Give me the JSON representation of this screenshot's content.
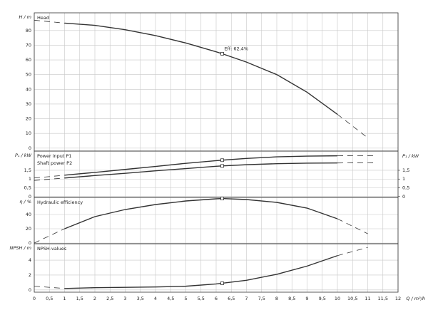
{
  "chart_data": [
    {
      "type": "line",
      "ylabel": "H / m",
      "ylim": [
        -2,
        92
      ],
      "yticks": [
        0,
        10,
        20,
        30,
        40,
        50,
        60,
        70,
        80
      ],
      "grid": true,
      "annotation": "Eff: 62,4%",
      "series": [
        {
          "name": "Head",
          "color": "#333333",
          "style": "solid",
          "marker_x": 6.2,
          "x": [
            1,
            2,
            3,
            4,
            5,
            6,
            6.2,
            7,
            8,
            9,
            10
          ],
          "values": [
            85,
            83.5,
            80.5,
            76.5,
            71.5,
            65.5,
            64.2,
            58.5,
            50,
            38,
            23
          ]
        },
        {
          "color": "#333333",
          "style": "dashed",
          "x": [
            0,
            1
          ],
          "values": [
            87,
            85
          ]
        },
        {
          "color": "#333333",
          "style": "dashed",
          "x": [
            10,
            11
          ],
          "values": [
            23,
            7
          ]
        }
      ]
    },
    {
      "type": "line",
      "ylabel": "P₁ / kW",
      "ylim": [
        -0.05,
        2.6
      ],
      "yticks": [
        0,
        {
          "value": 0.5,
          "label": "0,5"
        },
        1,
        {
          "value": 1.5,
          "label": "1,5"
        }
      ],
      "grid": true,
      "y2label": "P₁ / kW",
      "y2lim": [
        -0.05,
        2.6
      ],
      "y2ticks": [
        0,
        {
          "value": 0.5,
          "label": "0,5"
        },
        1,
        {
          "value": 1.5,
          "label": "1,5"
        }
      ],
      "series": [
        {
          "name": "Power input P1",
          "color": "#333333",
          "style": "solid",
          "marker_x": 6.2,
          "x": [
            1,
            2,
            3,
            4,
            5,
            6,
            6.2,
            7,
            8,
            9,
            10
          ],
          "values": [
            1.22,
            1.38,
            1.55,
            1.72,
            1.9,
            2.05,
            2.08,
            2.18,
            2.27,
            2.31,
            2.33
          ]
        },
        {
          "name": "Shaft power P2",
          "color": "#333333",
          "style": "solid",
          "marker_x": 6.2,
          "x": [
            1,
            2,
            3,
            4,
            5,
            6,
            6.2,
            7,
            8,
            9,
            10
          ],
          "values": [
            1.06,
            1.2,
            1.33,
            1.47,
            1.6,
            1.73,
            1.75,
            1.82,
            1.88,
            1.91,
            1.92
          ]
        },
        {
          "color": "#333333",
          "style": "dashed",
          "x": [
            0,
            1
          ],
          "values": [
            1.06,
            1.22
          ]
        },
        {
          "color": "#333333",
          "style": "dashed",
          "x": [
            10,
            11.3
          ],
          "values": [
            2.33,
            2.34
          ]
        },
        {
          "color": "#333333",
          "style": "dashed",
          "x": [
            0,
            1
          ],
          "values": [
            0.92,
            1.06
          ]
        },
        {
          "color": "#333333",
          "style": "dashed",
          "x": [
            10,
            11.3
          ],
          "values": [
            1.92,
            1.93
          ]
        }
      ]
    },
    {
      "type": "line",
      "ylabel": "η / %",
      "ylim": [
        -1,
        64
      ],
      "yticks": [
        0,
        20,
        40
      ],
      "grid": true,
      "series": [
        {
          "name": "Hydraulic efficiency",
          "color": "#333333",
          "style": "solid",
          "marker_x": 6.2,
          "x": [
            1,
            2,
            3,
            4,
            5,
            6,
            6.2,
            7,
            8,
            9,
            10
          ],
          "values": [
            20,
            37,
            47,
            54,
            59,
            62,
            62.4,
            61,
            57,
            49,
            34
          ]
        },
        {
          "color": "#333333",
          "style": "dashed",
          "x": [
            0,
            1
          ],
          "values": [
            0,
            20
          ]
        },
        {
          "color": "#333333",
          "style": "dashed",
          "x": [
            10,
            11
          ],
          "values": [
            34,
            13
          ]
        }
      ]
    },
    {
      "type": "line",
      "ylabel": "NPSH / m",
      "ylim": [
        -0.3,
        6.2
      ],
      "yticks": [
        0,
        2,
        4
      ],
      "grid": true,
      "xlabel": "Q / m³/h",
      "xlim": [
        0,
        12
      ],
      "xticks": [
        0,
        {
          "value": 0.5,
          "label": "0,5"
        },
        1,
        {
          "value": 1.5,
          "label": "1,5"
        },
        2,
        {
          "value": 2.5,
          "label": "2,5"
        },
        3,
        {
          "value": 3.5,
          "label": "3,5"
        },
        4,
        {
          "value": 4.5,
          "label": "4,5"
        },
        5,
        {
          "value": 5.5,
          "label": "5,5"
        },
        6,
        {
          "value": 6.5,
          "label": "6,5"
        },
        7,
        {
          "value": 7.5,
          "label": "7,5"
        },
        8,
        {
          "value": 8.5,
          "label": "8,5"
        },
        9,
        {
          "value": 9.5,
          "label": "9,5"
        },
        10,
        {
          "value": 10.5,
          "label": "10,5"
        },
        11,
        {
          "value": 11.5,
          "label": "11,5"
        },
        12
      ],
      "series": [
        {
          "name": "NPSH-values",
          "color": "#333333",
          "style": "solid",
          "marker_x": 6.2,
          "x": [
            1,
            2,
            3,
            4,
            5,
            6,
            6.2,
            7,
            8,
            9,
            10
          ],
          "values": [
            0.2,
            0.3,
            0.35,
            0.4,
            0.5,
            0.8,
            0.9,
            1.3,
            2.1,
            3.2,
            4.6
          ]
        },
        {
          "color": "#333333",
          "style": "dashed",
          "x": [
            0,
            1
          ],
          "values": [
            0.5,
            0.2
          ]
        },
        {
          "color": "#333333",
          "style": "dashed",
          "x": [
            10,
            11
          ],
          "values": [
            4.6,
            5.7
          ]
        }
      ]
    }
  ]
}
